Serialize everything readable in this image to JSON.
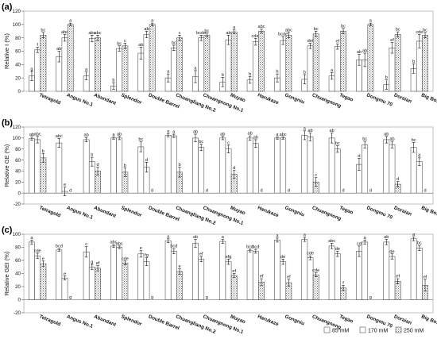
{
  "legend": {
    "labels": [
      "85 mM",
      "170 mM",
      "250 mM"
    ]
  },
  "chart_data": [
    {
      "panel_label": "(a)",
      "type": "bar",
      "ylabel": "Relative I (%)",
      "ylim": [
        0,
        120
      ],
      "yticks": [
        0,
        20,
        40,
        60,
        80,
        100,
        120
      ],
      "categories": [
        "Tetragold",
        "Angus No.1",
        "Abundant",
        "Splendor",
        "Double Barrel",
        "Chuangliang No.2",
        "Chuangnong No.1",
        "Muyao",
        "Harukaze",
        "Gongniu",
        "Chuangnong",
        "Tegao",
        "Dongmu 70",
        "Doraian",
        "Big Boss"
      ],
      "series": [
        {
          "name": "85 mM",
          "values": [
            23,
            52,
            23,
            8,
            57,
            20,
            22,
            14,
            17,
            20,
            18,
            23,
            47,
            10,
            34
          ],
          "err": [
            7,
            8,
            6,
            5,
            9,
            6,
            9,
            7,
            5,
            6,
            7,
            5,
            8,
            7,
            7
          ],
          "letters": [
            "g",
            "ab",
            "a",
            "b",
            "ab",
            "a",
            "a",
            "b",
            "b",
            "b",
            "b",
            "a",
            "ab",
            "b",
            "b"
          ]
        },
        {
          "name": "170 mM",
          "values": [
            62,
            80,
            79,
            64,
            85,
            65,
            80,
            77,
            74,
            76,
            68,
            67,
            47,
            65,
            75
          ],
          "err": [
            4,
            5,
            5,
            4,
            5,
            4,
            4,
            7,
            5,
            6,
            4,
            4,
            10,
            8,
            10
          ],
          "letters": [
            "f",
            "abc",
            "abc",
            "bc",
            "ab",
            "bc",
            "bcde",
            "ab",
            "cdef",
            "bcde",
            "def",
            "ef",
            "ab",
            "ef",
            "cde"
          ]
        },
        {
          "name": "250 mM",
          "values": [
            84,
            100,
            80,
            68,
            100,
            80,
            84,
            89,
            90,
            84,
            86,
            90,
            100,
            85,
            84
          ],
          "err": [
            4,
            2,
            4,
            4,
            2,
            4,
            3,
            3,
            3,
            4,
            4,
            4,
            2,
            4,
            4
          ],
          "letters": [
            "bc",
            "a",
            "abc",
            "c",
            "a",
            "c",
            "bc",
            "a",
            "abc",
            "abc",
            "bc",
            "bc",
            "a",
            "bc",
            "bc"
          ]
        }
      ]
    },
    {
      "panel_label": "(b)",
      "type": "bar",
      "ylabel": "Relative GE (%)",
      "ylim": [
        -20,
        120
      ],
      "yticks": [
        -20,
        0,
        20,
        40,
        60,
        80,
        100,
        120
      ],
      "categories": [
        "Tetragold",
        "Angus No.1",
        "Abundant",
        "Splendor",
        "Double Barrel",
        "Chuangliang No.2",
        "Chuangnong No.1",
        "Muyao",
        "Harukaze",
        "Gongniu",
        "Chuangnong",
        "Tegao",
        "Dongmu 70",
        "Doraian",
        "Big Boss"
      ],
      "series": [
        {
          "name": "85 mM",
          "values": [
            99,
            91,
            97,
            100,
            84,
            105,
            100,
            100,
            100,
            100,
            105,
            100,
            52,
            97,
            83
          ],
          "err": [
            3,
            8,
            4,
            2,
            9,
            3,
            7,
            3,
            4,
            2,
            8,
            9,
            11,
            6,
            9
          ],
          "letters": [
            "ab",
            "abc",
            "ab",
            "a",
            "bc",
            "a",
            "ab",
            "ab",
            "ab",
            "a",
            "a",
            "ab",
            "d",
            "ab",
            "bc"
          ]
        },
        {
          "name": "170 mM",
          "values": [
            97,
            3,
            57,
            100,
            47,
            104,
            83,
            80,
            90,
            100,
            102,
            80,
            88,
            88,
            57
          ],
          "err": [
            6,
            8,
            8,
            3,
            9,
            3,
            6,
            7,
            7,
            2,
            7,
            6,
            6,
            6,
            7
          ],
          "letters": [
            "abc",
            "e",
            "b",
            "ab",
            "d",
            "a",
            "bc",
            "c",
            "ab",
            "abc",
            "ab",
            "bc",
            "bc",
            "ab",
            "d"
          ]
        },
        {
          "name": "250 mM",
          "values": [
            64,
            0,
            40,
            38,
            0,
            38,
            0,
            34,
            0,
            0,
            20,
            0,
            0,
            16,
            0
          ],
          "err": [
            8,
            0,
            7,
            8,
            0,
            9,
            0,
            7,
            0,
            0,
            8,
            0,
            0,
            5,
            0
          ],
          "letters": [
            "b",
            "d",
            "d",
            "b",
            "d",
            "b",
            "d",
            "d",
            "d",
            "d",
            "c",
            "d",
            "d",
            "d",
            "d"
          ]
        }
      ]
    },
    {
      "panel_label": "(c)",
      "type": "bar",
      "ylabel": "Relative GEI (%)",
      "ylim": [
        -20,
        100
      ],
      "yticks": [
        -20,
        0,
        20,
        40,
        60,
        80,
        100
      ],
      "categories": [
        "Tetragold",
        "Angus No.1",
        "Abundant",
        "Splendor",
        "Double Barrel",
        "Chuangliang No.2",
        "Chuangnong No.1",
        "Muyao",
        "Harukaze",
        "Gongniu",
        "Chuangnong",
        "Tegao",
        "Dongmu 70",
        "Doraian",
        "Big Boss"
      ],
      "series": [
        {
          "name": "85 mM",
          "values": [
            88,
            76,
            73,
            82,
            70,
            90,
            86,
            89,
            75,
            91,
            92,
            82,
            74,
            88,
            93
          ],
          "err": [
            3,
            2,
            8,
            2,
            5,
            3,
            6,
            3,
            2,
            3,
            3,
            4,
            8,
            4,
            3
          ],
          "letters": [
            "a",
            "bcd",
            "c",
            "abc",
            "e",
            "a",
            "ab",
            "a",
            "bcd",
            "a",
            "a",
            "abc",
            "cd",
            "ab",
            "a"
          ]
        },
        {
          "name": "170 mM",
          "values": [
            67,
            33,
            50,
            80,
            58,
            74,
            62,
            58,
            74,
            58,
            64,
            70,
            88,
            66,
            79
          ],
          "err": [
            4,
            3,
            4,
            2,
            6,
            4,
            4,
            4,
            3,
            4,
            3,
            4,
            3,
            4,
            4
          ],
          "letters": [
            "cde",
            "e",
            "g",
            "abc",
            "fg",
            "bcd",
            "ef",
            "efg",
            "bcd",
            "de",
            "cde",
            "de",
            "a",
            "de",
            "bc"
          ]
        },
        {
          "name": "250 mM",
          "values": [
            55,
            0,
            48,
            56,
            0,
            43,
            0,
            37,
            27,
            26,
            38,
            18,
            0,
            28,
            22
          ],
          "err": [
            4,
            0,
            4,
            3,
            0,
            4,
            0,
            3,
            5,
            5,
            3,
            4,
            0,
            4,
            9
          ],
          "letters": [
            "e",
            "g",
            "ef",
            "cde",
            "g",
            "e",
            "g",
            "ef",
            "ef",
            "ef",
            "cde",
            "f",
            "g",
            "ef",
            "ef"
          ]
        }
      ]
    }
  ]
}
